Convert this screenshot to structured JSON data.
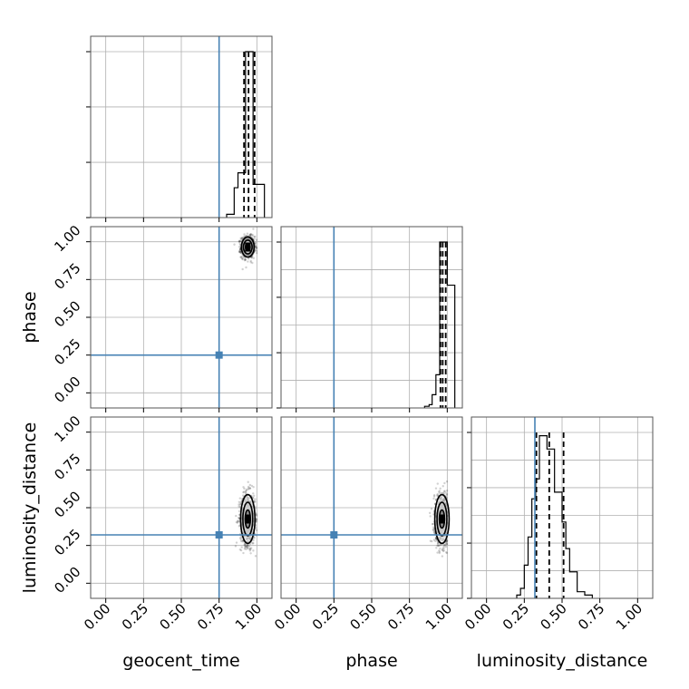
{
  "chart_data": {
    "type": "corner",
    "grid": true,
    "parameters": [
      "geocent_time",
      "phase",
      "luminosity_distance"
    ],
    "axis_labels": {
      "x": [
        "geocent_time",
        "phase",
        "luminosity_distance"
      ],
      "y": [
        "",
        "phase",
        "luminosity_distance"
      ]
    },
    "range": [
      -0.1,
      1.1
    ],
    "ticks": [
      0.0,
      0.25,
      0.5,
      0.75,
      1.0
    ],
    "tick_labels": [
      "0.00",
      "0.25",
      "0.50",
      "0.75",
      "1.00"
    ],
    "truths": [
      0.75,
      0.25,
      0.32
    ],
    "truth_color": "#4682b4",
    "quantiles": [
      [
        0.915,
        0.945,
        0.985
      ],
      [
        0.955,
        0.97,
        0.99
      ],
      [
        0.33,
        0.415,
        0.51
      ]
    ],
    "histograms": [
      {
        "bin_edges": [
          0.8,
          0.85,
          0.875,
          0.925,
          0.975,
          1.05
        ],
        "counts": [
          0.02,
          0.18,
          0.27,
          1.0,
          0.2
        ]
      },
      {
        "bin_edges": [
          0.85,
          0.88,
          0.9,
          0.925,
          0.95,
          1.0,
          1.05
        ],
        "counts": [
          0.01,
          0.02,
          0.08,
          0.2,
          1.0,
          0.74
        ]
      },
      {
        "bin_edges": [
          0.2,
          0.225,
          0.25,
          0.275,
          0.3,
          0.325,
          0.35,
          0.4,
          0.45,
          0.5,
          0.525,
          0.55,
          0.6,
          0.65,
          0.7
        ],
        "counts": [
          0.02,
          0.06,
          0.2,
          0.37,
          0.6,
          0.72,
          0.98,
          0.9,
          0.64,
          0.46,
          0.3,
          0.16,
          0.04,
          0.02
        ]
      }
    ],
    "posterior_2d": [
      {
        "x_param": "geocent_time",
        "y_param": "phase",
        "x_mean": 0.94,
        "y_mean": 0.965,
        "x_sd": 0.022,
        "y_sd": 0.035
      },
      {
        "x_param": "geocent_time",
        "y_param": "luminosity_distance",
        "x_mean": 0.94,
        "y_mean": 0.425,
        "x_sd": 0.025,
        "y_sd": 0.085
      },
      {
        "x_param": "phase",
        "y_param": "luminosity_distance",
        "x_mean": 0.965,
        "y_mean": 0.425,
        "x_sd": 0.025,
        "y_sd": 0.085
      }
    ]
  }
}
